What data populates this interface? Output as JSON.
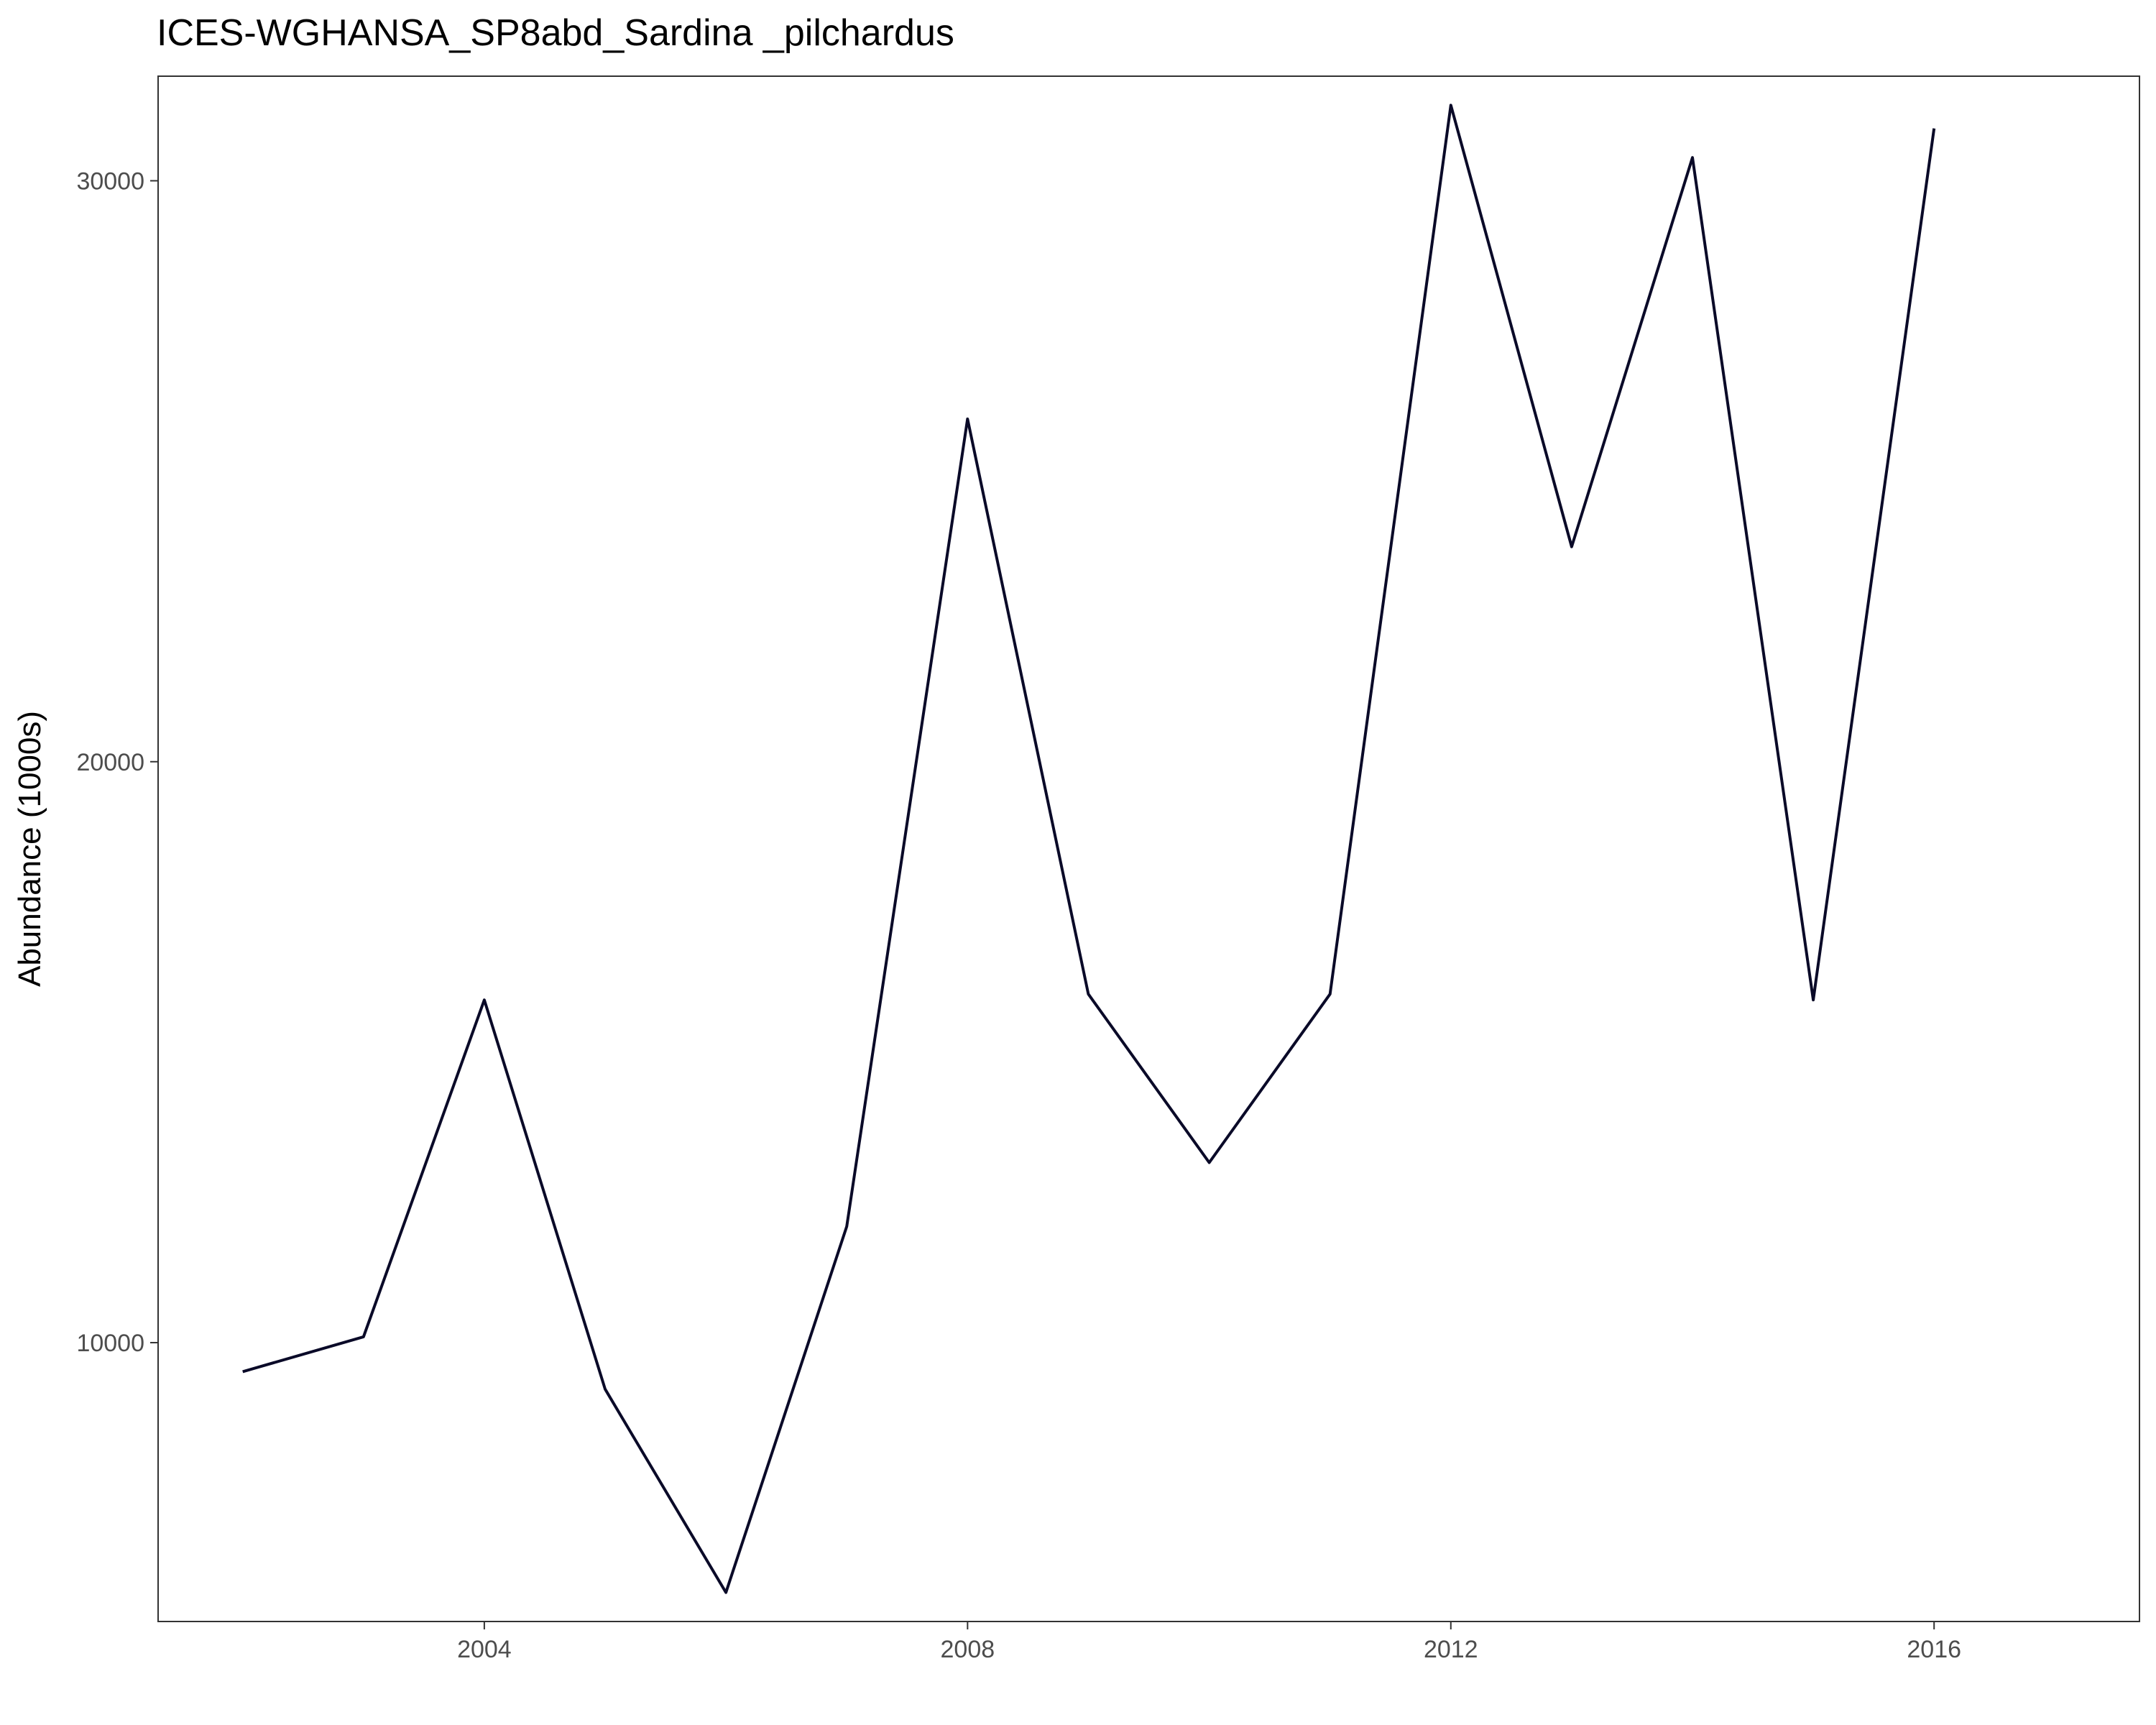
{
  "chart_data": {
    "type": "line",
    "title": "ICES-WGHANSA_SP8abd_Sardina _pilchardus",
    "xlabel": "",
    "ylabel": "Abundance (1000s)",
    "x": [
      2002,
      2003,
      2004,
      2005,
      2006,
      2007,
      2008,
      2009,
      2010,
      2011,
      2012,
      2013,
      2014,
      2015,
      2016
    ],
    "series": [
      {
        "values": [
          9500,
          10100,
          15900,
          9200,
          5700,
          12000,
          25900,
          16000,
          13100,
          16000,
          31300,
          23700,
          30400,
          15900,
          30900
        ],
        "color": "#0a0a28"
      }
    ],
    "xlim": [
      2001.3,
      2017.7
    ],
    "ylim": [
      5200,
      31800
    ],
    "x_ticks": [
      2004,
      2008,
      2012,
      2016
    ],
    "x_tick_labels": [
      "2004",
      "2008",
      "2012",
      "2016"
    ],
    "y_ticks": [
      10000,
      20000,
      30000
    ],
    "y_tick_labels": [
      "10000",
      "20000",
      "30000"
    ],
    "grid": false,
    "legend": "none"
  }
}
